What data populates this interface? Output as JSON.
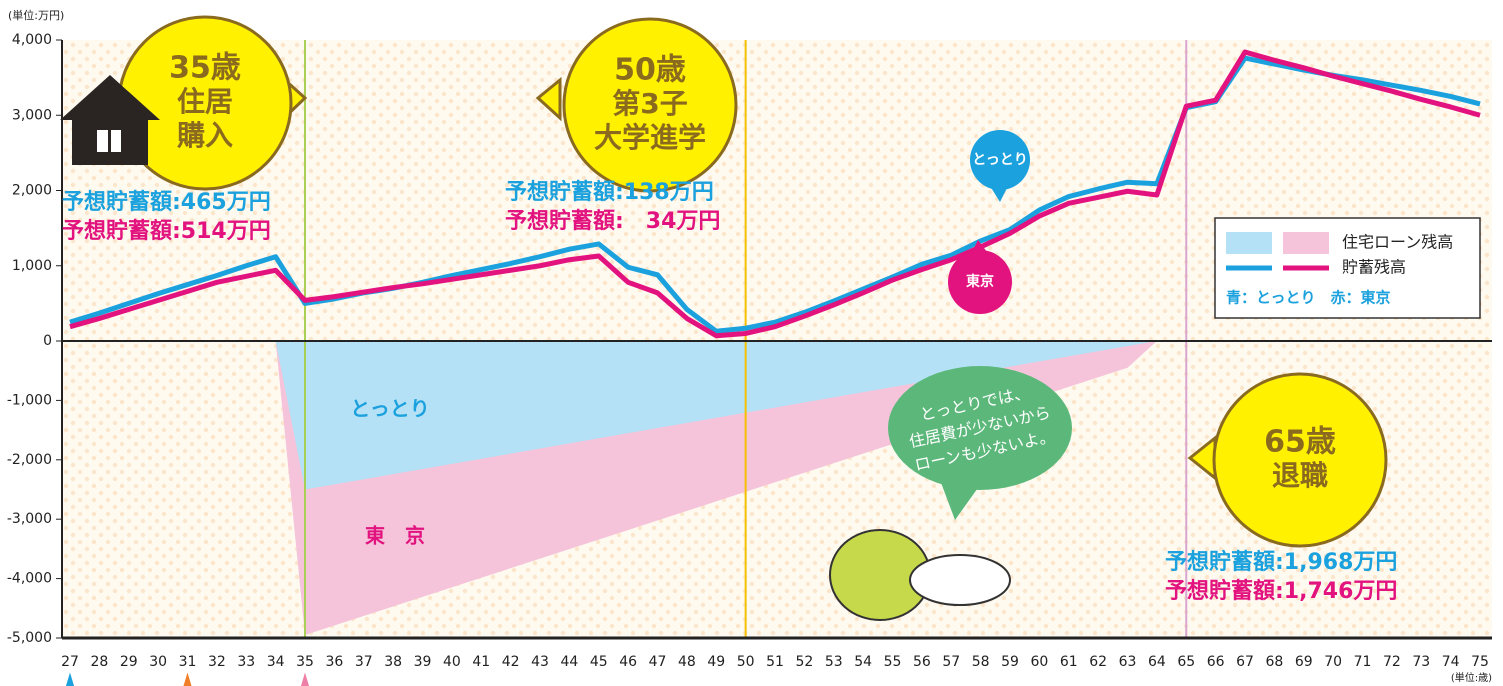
{
  "chart_data": [
    {
      "type": "line",
      "y_label": "(単位:万円)",
      "xlim": [
        27,
        75
      ],
      "ylim": [
        0,
        4000
      ],
      "yticks": [
        0,
        {
          "value": 1000,
          "label": "1,000"
        },
        {
          "value": 2000,
          "label": "2,000"
        },
        {
          "value": 3000,
          "label": "3,000"
        },
        {
          "value": 4000,
          "label": "4,000"
        }
      ],
      "x": [
        27,
        28,
        29,
        30,
        31,
        32,
        33,
        34,
        35,
        36,
        37,
        38,
        39,
        40,
        41,
        42,
        43,
        44,
        45,
        46,
        47,
        48,
        49,
        50,
        51,
        52,
        53,
        54,
        55,
        56,
        57,
        58,
        59,
        60,
        61,
        62,
        63,
        64,
        65,
        66,
        67,
        68,
        69,
        70,
        71,
        72,
        73,
        74,
        75
      ],
      "series": [
        {
          "name": "とっとり",
          "color": "#1ba1dd",
          "values": [
            250,
            370,
            500,
            630,
            750,
            870,
            1000,
            1120,
            500,
            560,
            640,
            700,
            780,
            870,
            950,
            1030,
            1120,
            1220,
            1290,
            980,
            880,
            420,
            130,
            170,
            250,
            380,
            530,
            690,
            850,
            1020,
            1140,
            1330,
            1480,
            1740,
            1920,
            2020,
            2110,
            2090,
            3100,
            3180,
            3760,
            3680,
            3600,
            3530,
            3470,
            3400,
            3330,
            3250,
            3150
          ]
        },
        {
          "name": "東京",
          "color": "#e2127f",
          "values": [
            190,
            300,
            420,
            540,
            660,
            780,
            860,
            940,
            540,
            590,
            650,
            710,
            760,
            820,
            880,
            940,
            1000,
            1080,
            1130,
            780,
            640,
            300,
            70,
            100,
            190,
            330,
            480,
            640,
            810,
            950,
            1080,
            1250,
            1430,
            1660,
            1830,
            1910,
            1990,
            1940,
            3120,
            3200,
            3840,
            3730,
            3630,
            3520,
            3420,
            3320,
            3210,
            3110,
            3000
          ]
        }
      ],
      "legend": {
        "position": "right",
        "entries": [
          "住宅ローン残高",
          "貯蓄残高"
        ],
        "note": "青：とっとり　赤：東京"
      },
      "events": [
        {
          "x": 35,
          "color": "#a9cf54",
          "title": "35歳",
          "lines": [
            "住居",
            "購入"
          ],
          "savings": [
            "予想貯蓄額:465万円",
            "予想貯蓄額:514万円"
          ]
        },
        {
          "x": 50,
          "color": "#f5c000",
          "title": "50歳",
          "lines": [
            "第3子",
            "大学進学"
          ],
          "savings": [
            "予想貯蓄額:138万円",
            "予想貯蓄額:　34万円"
          ]
        },
        {
          "x": 65,
          "color": "#d9a6cf",
          "title": "65歳",
          "lines": [
            "退職"
          ],
          "savings": [
            "予想貯蓄額:1,968万円",
            "予想貯蓄額:1,746万円"
          ]
        }
      ]
    },
    {
      "type": "area",
      "x_label": "(単位:歳)",
      "xlim": [
        27,
        75
      ],
      "ylim": [
        -5000,
        0
      ],
      "yticks": [
        {
          "value": -1000,
          "label": "-1,000"
        },
        {
          "value": -2000,
          "label": "-2,000"
        },
        {
          "value": -3000,
          "label": "-3,000"
        },
        {
          "value": -4000,
          "label": "-4,000"
        },
        {
          "value": -5000,
          "label": "-5,000"
        }
      ],
      "xticks": [
        27,
        28,
        29,
        30,
        31,
        32,
        33,
        34,
        35,
        36,
        37,
        38,
        39,
        40,
        41,
        42,
        43,
        44,
        45,
        46,
        47,
        48,
        49,
        50,
        51,
        52,
        53,
        54,
        55,
        56,
        57,
        58,
        59,
        60,
        61,
        62,
        63,
        64,
        65,
        66,
        67,
        68,
        69,
        70,
        71,
        72,
        73,
        74,
        75
      ],
      "series": [
        {
          "name": "東　京",
          "color": "#f5c3da",
          "x": [
            34,
            35,
            63,
            64
          ],
          "values": [
            0,
            -4950,
            -450,
            0
          ]
        },
        {
          "name": "とっとり",
          "color": "#b5e1f6",
          "x": [
            34,
            35,
            64
          ],
          "values": [
            0,
            -2500,
            0
          ]
        }
      ],
      "callout": [
        "とっとりでは、",
        "住居費が少ないから",
        "ローンも少ないよ。"
      ],
      "markers": [
        {
          "x": 27,
          "color": "#1ba1dd"
        },
        {
          "x": 31,
          "color": "#f07f2a"
        },
        {
          "x": 35,
          "color": "#ee7fa6"
        }
      ]
    }
  ]
}
